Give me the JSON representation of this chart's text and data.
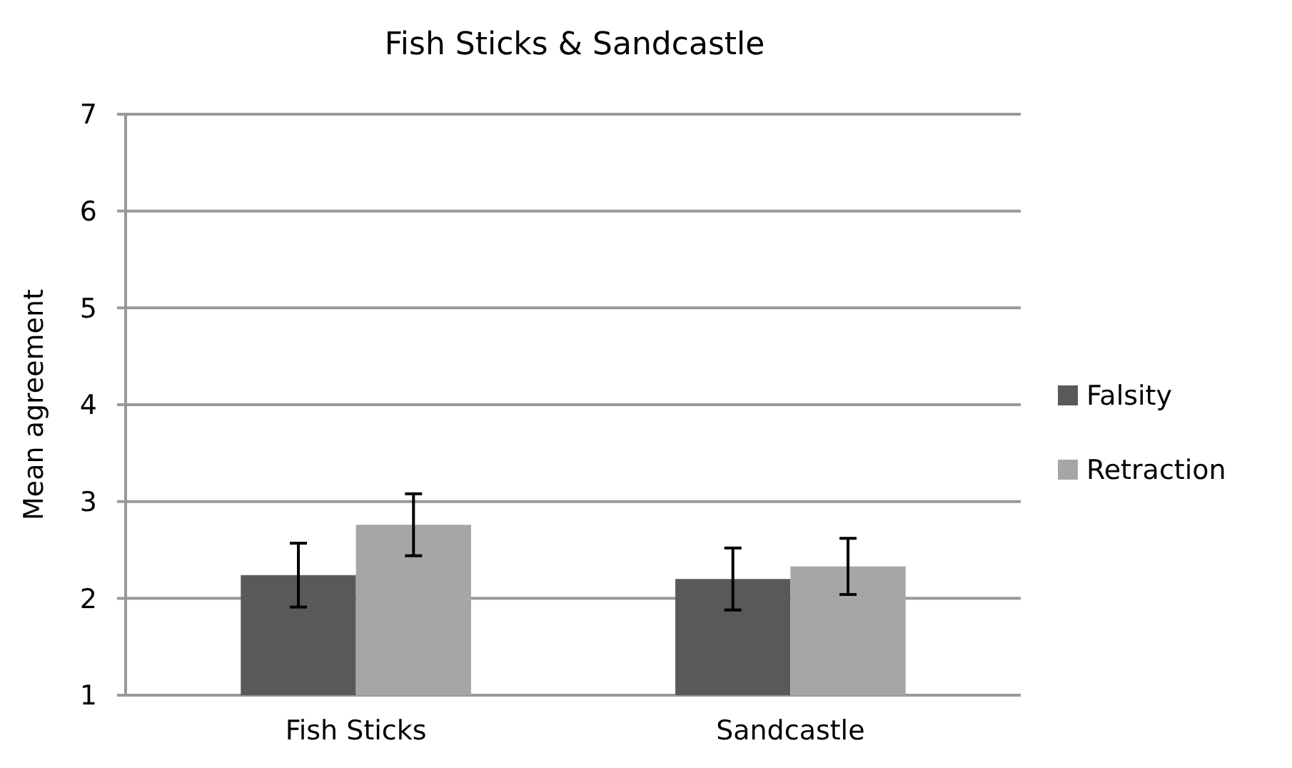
{
  "chart_data": {
    "type": "bar",
    "title": "Fish Sticks & Sandcastle",
    "ylabel": "Mean agreement",
    "categories": [
      "Fish Sticks",
      "Sandcastle"
    ],
    "series": [
      {
        "name": "Falsity",
        "color": "#595959",
        "values": [
          2.24,
          2.2
        ],
        "errors": [
          0.33,
          0.32
        ]
      },
      {
        "name": "Retraction",
        "color": "#a6a6a6",
        "values": [
          2.76,
          2.33
        ],
        "errors": [
          0.32,
          0.29
        ]
      }
    ],
    "ylim": [
      1,
      7
    ],
    "yticks": [
      1,
      2,
      3,
      4,
      5,
      6,
      7
    ],
    "grid": "y",
    "legend": "right"
  }
}
